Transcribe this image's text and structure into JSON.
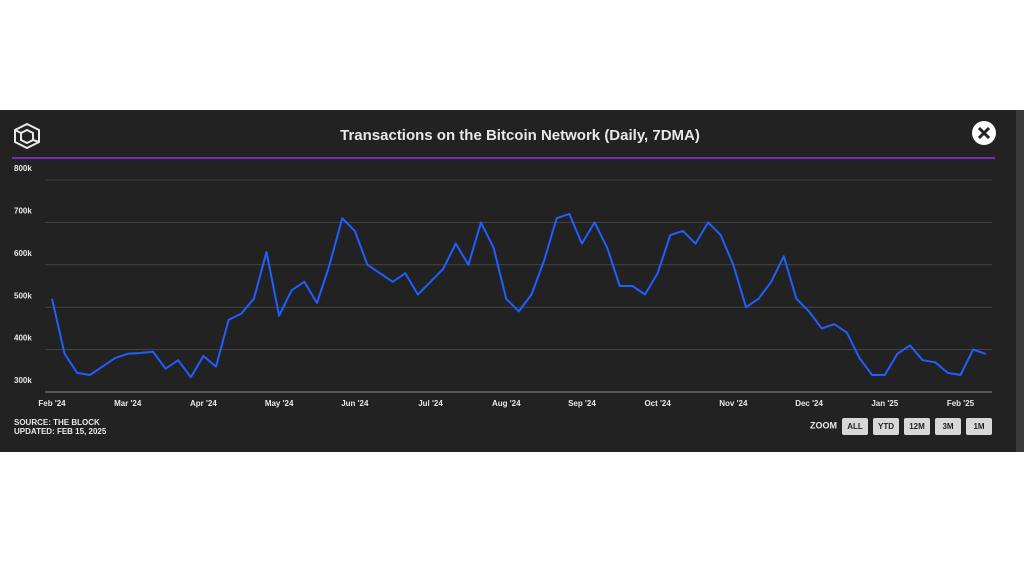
{
  "chart_data": {
    "type": "line",
    "title": "Transactions on the Bitcoin Network (Daily, 7DMA)",
    "source": "SOURCE: THE BLOCK",
    "updated": "UPDATED: FEB 15, 2025",
    "zoom_label": "ZOOM",
    "zoom_buttons": [
      "ALL",
      "YTD",
      "12M",
      "3M",
      "1M"
    ],
    "categories": [
      "Feb '24",
      null,
      null,
      null,
      null,
      null,
      "Mar '24",
      null,
      null,
      null,
      null,
      null,
      "Apr '24",
      null,
      null,
      null,
      null,
      null,
      "May '24",
      null,
      null,
      null,
      null,
      null,
      "Jun '24",
      null,
      null,
      null,
      null,
      null,
      "Jul '24",
      null,
      null,
      null,
      null,
      null,
      "Aug '24",
      null,
      null,
      null,
      null,
      null,
      "Sep '24",
      null,
      null,
      null,
      null,
      null,
      "Oct '24",
      null,
      null,
      null,
      null,
      null,
      "Nov '24",
      null,
      null,
      null,
      null,
      null,
      "Dec '24",
      null,
      null,
      null,
      null,
      null,
      "Jan '25",
      null,
      null,
      null,
      null,
      null,
      "Feb '25",
      null,
      null
    ],
    "series": [
      {
        "name": "Transactions",
        "color": "#1f5fff",
        "values": [
          520000,
          390000,
          345000,
          340000,
          360000,
          380000,
          390000,
          392000,
          395000,
          355000,
          375000,
          335000,
          385000,
          360000,
          470000,
          485000,
          520000,
          630000,
          480000,
          540000,
          560000,
          510000,
          600000,
          710000,
          680000,
          600000,
          580000,
          560000,
          580000,
          530000,
          560000,
          590000,
          650000,
          600000,
          700000,
          640000,
          520000,
          490000,
          530000,
          610000,
          710000,
          720000,
          650000,
          700000,
          640000,
          550000,
          550000,
          530000,
          580000,
          670000,
          680000,
          650000,
          700000,
          670000,
          600000,
          500000,
          520000,
          560000,
          620000,
          520000,
          490000,
          450000,
          460000,
          440000,
          380000,
          340000,
          340000,
          390000,
          410000,
          375000,
          370000,
          345000,
          340000,
          400000,
          390000
        ]
      }
    ],
    "ylim": [
      300000,
      800000
    ],
    "yticks": [
      {
        "value": 300000,
        "label": "300k"
      },
      {
        "value": 400000,
        "label": "400k"
      },
      {
        "value": 500000,
        "label": "500k"
      },
      {
        "value": 600000,
        "label": "600k"
      },
      {
        "value": 700000,
        "label": "700k"
      },
      {
        "value": 800000,
        "label": "800k"
      }
    ],
    "grid": true
  }
}
